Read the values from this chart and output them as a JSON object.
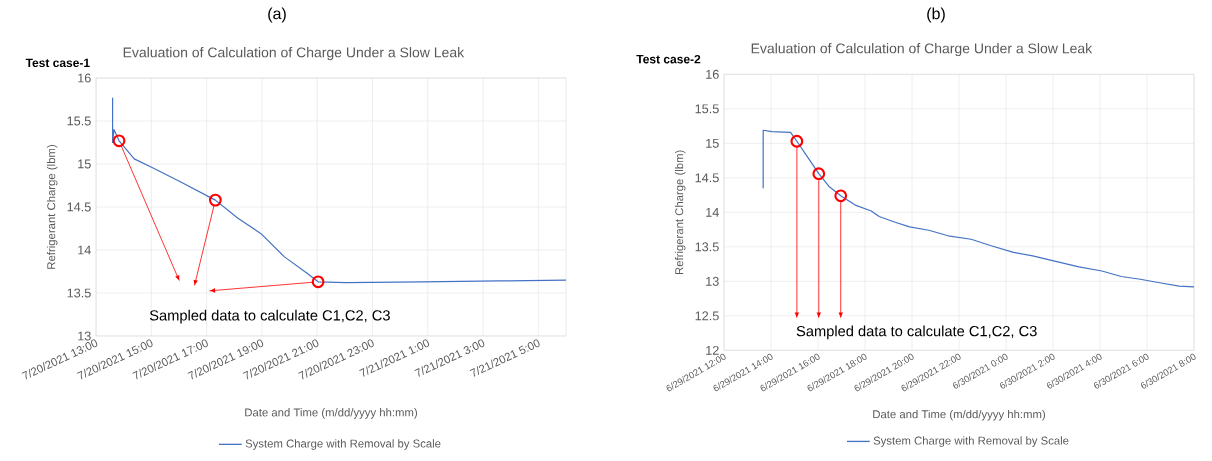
{
  "chart_data": [
    {
      "type": "line",
      "title": "Evaluation of Calculation of Charge Under a Slow Leak",
      "xlabel": "Date and Time (m/dd/yyyy hh:mm)",
      "ylabel": "Refrigerant Charge (lbm)",
      "annotations": [
        "(a)",
        "Test case-1",
        "Sampled data to calculate C1,C2, C3"
      ],
      "series": [
        {
          "name": "System Charge with Removal by Scale",
          "color": "#4472c4",
          "x": [
            "2021-07-20T13:36",
            "2021-07-20T13:36",
            "2021-07-20T13:39",
            "2021-07-20T13:50",
            "2021-07-20T14:23",
            "2021-07-20T15:05",
            "2021-07-20T16:04",
            "2021-07-20T17:19",
            "2021-07-20T18:08",
            "2021-07-20T18:58",
            "2021-07-20T19:49",
            "2021-07-20T20:38",
            "2021-07-20T21:02",
            "2021-07-20T22:02",
            "2021-07-21T00:48",
            "2021-07-21T03:35",
            "2021-07-21T06:00"
          ],
          "values": [
            15.77,
            15.25,
            15.4,
            15.27,
            15.06,
            14.95,
            14.79,
            14.58,
            14.37,
            14.19,
            13.92,
            13.73,
            13.63,
            13.62,
            13.63,
            13.64,
            13.65
          ]
        },
        {
          "type": "scatter",
          "color": "#ff0000",
          "marker": "circle",
          "x": [
            "2021-07-20T13:50",
            "2021-07-20T17:19",
            "2021-07-20T21:02"
          ],
          "values": [
            15.27,
            14.58,
            13.63
          ]
        }
      ],
      "xlim": [
        "2021-07-20T13:00",
        "2021-07-21T06:00"
      ],
      "ylim": [
        13,
        16
      ],
      "xticks": [
        {
          "value": "2021-07-20T13:00",
          "label": "7/20/2021 13:00"
        },
        {
          "value": "2021-07-20T15:00",
          "label": "7/20/2021 15:00"
        },
        {
          "value": "2021-07-20T17:00",
          "label": "7/20/2021 17:00"
        },
        {
          "value": "2021-07-20T19:00",
          "label": "7/20/2021 19:00"
        },
        {
          "value": "2021-07-20T21:00",
          "label": "7/20/2021 21:00"
        },
        {
          "value": "2021-07-20T23:00",
          "label": "7/20/2021 23:00"
        },
        {
          "value": "2021-07-21T01:00",
          "label": "7/21/2021 1:00"
        },
        {
          "value": "2021-07-21T03:00",
          "label": "7/21/2021 3:00"
        },
        {
          "value": "2021-07-21T05:00",
          "label": "7/21/2021 5:00"
        }
      ],
      "yticks": [
        13,
        13.5,
        14,
        14.5,
        15,
        15.5,
        16
      ],
      "grid": true,
      "legend": "bottom"
    },
    {
      "type": "line",
      "title": "Evaluation of Calculation of Charge Under a Slow Leak",
      "xlabel": "Date and Time (m/dd/yyyy hh:mm)",
      "ylabel": "Refrigerant Charge (lbm)",
      "annotations": [
        "(b)",
        "Test case-2",
        {
          "text": "Sampled data to calculate C1,C2, C3",
          "x": "2021-06-29T16:02",
          "y": 14.56
        }
      ],
      "series": [
        {
          "name": "System Charge with Removal by Scale",
          "color": "#4472c4",
          "x": [
            "2021-06-29T13:40",
            "2021-06-29T13:40",
            "2021-06-29T14:02",
            "2021-06-29T14:50",
            "2021-06-29T15:06",
            "2021-06-29T15:30",
            "2021-06-29T16:02",
            "2021-06-29T16:29",
            "2021-06-29T16:58",
            "2021-06-29T17:37",
            "2021-06-29T18:16",
            "2021-06-29T18:36",
            "2021-06-29T19:15",
            "2021-06-29T19:54",
            "2021-06-29T20:43",
            "2021-06-29T21:32",
            "2021-06-29T22:31",
            "2021-06-29T23:20",
            "2021-06-30T00:19",
            "2021-06-30T01:08",
            "2021-06-30T02:07",
            "2021-06-30T03:06",
            "2021-06-30T04:05",
            "2021-06-30T04:54",
            "2021-06-30T05:43",
            "2021-06-30T06:32",
            "2021-06-30T07:22",
            "2021-06-30T08:00"
          ],
          "values": [
            14.35,
            15.19,
            15.17,
            15.16,
            15.03,
            14.83,
            14.56,
            14.37,
            14.24,
            14.1,
            14.02,
            13.94,
            13.86,
            13.79,
            13.74,
            13.66,
            13.61,
            13.52,
            13.42,
            13.37,
            13.29,
            13.21,
            13.15,
            13.07,
            13.03,
            12.98,
            12.93,
            12.92
          ]
        },
        {
          "type": "scatter",
          "color": "#ff0000",
          "marker": "circle",
          "x": [
            "2021-06-29T15:06",
            "2021-06-29T16:02",
            "2021-06-29T16:58"
          ],
          "values": [
            15.03,
            14.56,
            14.24
          ]
        }
      ],
      "xlim": [
        "2021-06-29T12:00",
        "2021-06-30T08:00"
      ],
      "ylim": [
        12,
        16
      ],
      "xticks": [
        {
          "value": "2021-06-29T12:00",
          "label": "6/29/2021 12:00"
        },
        {
          "value": "2021-06-29T14:00",
          "label": "6/29/2021 14:00"
        },
        {
          "value": "2021-06-29T16:00",
          "label": "6/29/2021 16:00"
        },
        {
          "value": "2021-06-29T18:00",
          "label": "6/29/2021 18:00"
        },
        {
          "value": "2021-06-29T20:00",
          "label": "6/29/2021 20:00"
        },
        {
          "value": "2021-06-29T22:00",
          "label": "6/29/2021 22:00"
        },
        {
          "value": "2021-06-30T00:00",
          "label": "6/30/2021 0:00"
        },
        {
          "value": "2021-06-30T02:00",
          "label": "6/30/2021 2:00"
        },
        {
          "value": "2021-06-30T04:00",
          "label": "6/30/2021 4:00"
        },
        {
          "value": "2021-06-30T06:00",
          "label": "6/30/2021 6:00"
        },
        {
          "value": "2021-06-30T08:00",
          "label": "6/30/2021 8:00"
        }
      ],
      "yticks": [
        12,
        12.5,
        13,
        13.5,
        14,
        14.5,
        15,
        15.5,
        16
      ],
      "grid": true,
      "legend": "bottom"
    }
  ]
}
